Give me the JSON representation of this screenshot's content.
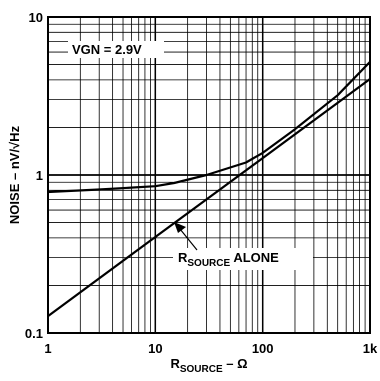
{
  "chart_data": {
    "type": "line",
    "x_scale": "log",
    "y_scale": "log",
    "xlim": [
      1,
      1000
    ],
    "ylim": [
      0.1,
      10
    ],
    "grid": true,
    "x_ticks": [
      {
        "value": 1,
        "label": "1"
      },
      {
        "value": 10,
        "label": "10"
      },
      {
        "value": 100,
        "label": "100"
      },
      {
        "value": 1000,
        "label": "1k"
      }
    ],
    "y_ticks": [
      {
        "value": 0.1,
        "label": "0.1"
      },
      {
        "value": 1,
        "label": "1"
      },
      {
        "value": 10,
        "label": "10"
      }
    ],
    "xlabel": {
      "main": "R",
      "sub": "SOURCE",
      "tail": " – Ω"
    },
    "ylabel": "NOISE – nV/√Hz",
    "annotations": {
      "vgn": "VGN = 2.9V",
      "rsource_alone": {
        "main": "R",
        "sub": "SOURCE",
        "tail": " ALONE"
      }
    },
    "series": [
      {
        "x": [
          1,
          3,
          10,
          15,
          30,
          70,
          100,
          200,
          500,
          1000
        ],
        "y": [
          0.78,
          0.81,
          0.85,
          0.89,
          1.0,
          1.2,
          1.38,
          1.95,
          3.2,
          5.2
        ]
      },
      {
        "x": [
          1,
          10,
          100,
          1000
        ],
        "y": [
          0.128,
          0.405,
          1.28,
          4.05
        ]
      }
    ]
  }
}
